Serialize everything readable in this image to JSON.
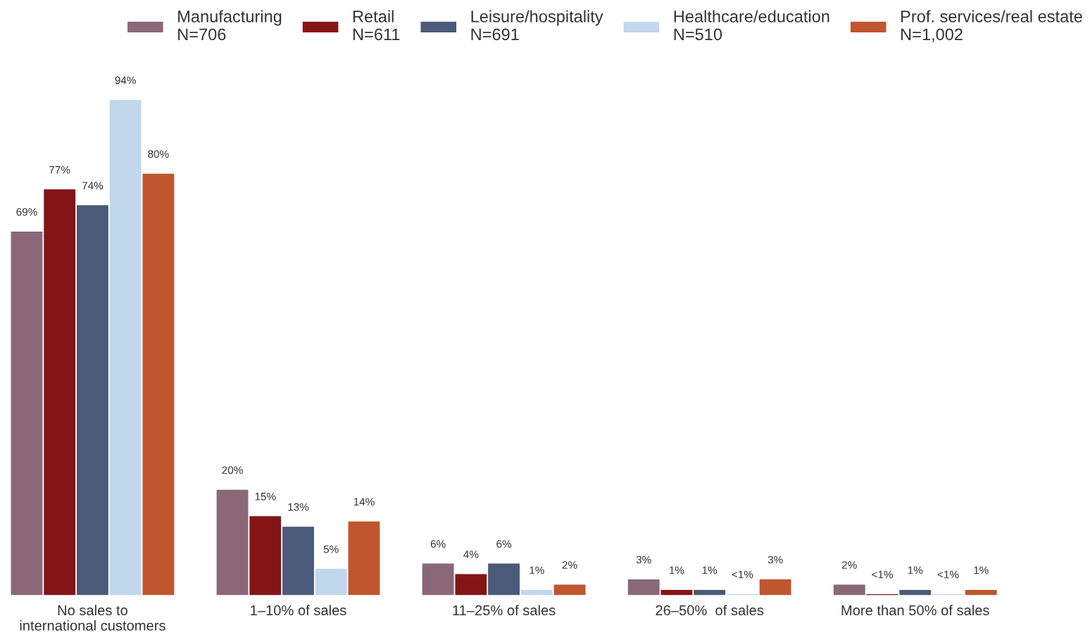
{
  "chart_data": {
    "type": "bar",
    "categories": [
      "No sales to\ninternational customers",
      "1–10% of sales",
      "11–25% of sales",
      "26–50%  of sales",
      "More than 50% of sales"
    ],
    "series": [
      {
        "name": "Manufacturing\nN=706",
        "color": "#8a6878",
        "values": [
          69,
          20,
          6,
          3,
          2
        ],
        "value_labels": [
          "69%",
          "20%",
          "6%",
          "3%",
          "2%"
        ]
      },
      {
        "name": "Retail\nN=611",
        "color": "#841517",
        "values": [
          77,
          15,
          4,
          1,
          0.2
        ],
        "value_labels": [
          "77%",
          "15%",
          "4%",
          "1%",
          "<1%"
        ]
      },
      {
        "name": "Leisure/hospitality\nN=691",
        "color": "#4a5a78",
        "values": [
          74,
          13,
          6,
          1,
          1
        ],
        "value_labels": [
          "74%",
          "13%",
          "6%",
          "1%",
          "1%"
        ]
      },
      {
        "name": "Healthcare/education\nN=510",
        "color": "#c0d7ec",
        "values": [
          94,
          5,
          1,
          0.2,
          0.2
        ],
        "value_labels": [
          "94%",
          "5%",
          "1%",
          "<1%",
          "<1%"
        ]
      },
      {
        "name": "Prof. services/real estate\nN=1,002",
        "color": "#c0562f",
        "values": [
          80,
          14,
          2,
          3,
          1
        ],
        "value_labels": [
          "80%",
          "14%",
          "2%",
          "3%",
          "1%"
        ]
      }
    ],
    "legend": "top",
    "grid": false,
    "tick_labels": "x"
  }
}
